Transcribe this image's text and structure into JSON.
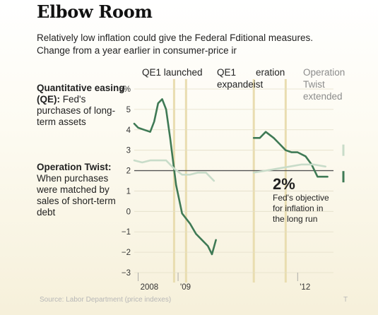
{
  "header": {
    "title": "Elbow Room",
    "subtitle_line1": "Relatively low inflation could give the Federal Fditional measures.",
    "subtitle_line2": "Change from a year earlier in consumer-price ir"
  },
  "legend": {
    "qe_heading": "Quantitative easing (QE):",
    "qe_desc": "Fed's purchases of long-term assets",
    "ot_heading": "Operation Twist:",
    "ot_desc": "When purchases were matched by sales of short-term debt"
  },
  "annotations": {
    "qe1_launched": "QE1 launched",
    "qe1_expanded_line1": "QE1",
    "qe1_expanded_line1b": "eration",
    "qe1_expanded_line2": "expandeist",
    "twist_line1": "Operation",
    "twist_line2": "Twist",
    "twist_line3": "extended",
    "goal_value": "2%",
    "goal_line1": "Fed's objective",
    "goal_line2": "for inflation in",
    "goal_line3": "the long run",
    "source": "Source: Labor Department (price indexes)",
    "corner_mark": "T"
  },
  "colors": {
    "headline_series": "#3f7a55",
    "core_series": "#c8dcc9",
    "highlight": "#e9ddb0",
    "goal_line": "#555555"
  },
  "chart_data": {
    "type": "line",
    "title": "",
    "xlabel": "",
    "ylabel": "",
    "ylim": [
      -3,
      6
    ],
    "y_ticks": [
      -3,
      -2,
      -1,
      0,
      1,
      2,
      3,
      4,
      5,
      6
    ],
    "y_tick_labels": [
      "−3",
      "−2",
      "−1",
      "0",
      "1",
      "2",
      "3",
      "4",
      "5",
      "6%"
    ],
    "xlim": [
      2007.9,
      2012.9
    ],
    "x_ticks": [
      2008,
      2009,
      2012
    ],
    "x_tick_labels": [
      "2008",
      "'09",
      "'12"
    ],
    "reference_line": {
      "y": 2
    },
    "events": [
      {
        "x": 2008.9
      },
      {
        "x": 2009.2
      },
      {
        "x": 2010.9
      },
      {
        "x": 2011.7
      }
    ],
    "series": [
      {
        "name": "",
        "x": [
          2007.9,
          2008.0,
          2008.15,
          2008.3,
          2008.4,
          2008.5,
          2008.6,
          2008.7,
          2008.8,
          2008.95,
          2009.1,
          2009.3,
          2009.45,
          2009.6,
          2009.75,
          2009.85,
          2009.95
        ],
        "values": [
          4.3,
          4.1,
          4.0,
          3.9,
          4.4,
          5.3,
          5.5,
          5.0,
          3.6,
          1.3,
          -0.1,
          -0.6,
          -1.1,
          -1.4,
          -1.7,
          -2.1,
          -1.4
        ]
      },
      {
        "name": "",
        "x": [
          2007.9,
          2008.1,
          2008.3,
          2008.5,
          2008.7,
          2008.9,
          2009.1,
          2009.3,
          2009.5,
          2009.7,
          2009.9
        ],
        "values": [
          2.5,
          2.4,
          2.5,
          2.5,
          2.5,
          2.1,
          1.8,
          1.8,
          1.9,
          1.9,
          1.5
        ]
      },
      {
        "name": "",
        "x": [
          2010.9,
          2011.05,
          2011.2,
          2011.4,
          2011.55,
          2011.7,
          2011.85,
          2012.0,
          2012.2,
          2012.35,
          2012.5,
          2012.65,
          2012.75
        ],
        "values": [
          3.6,
          3.6,
          3.9,
          3.6,
          3.3,
          3.0,
          2.9,
          2.9,
          2.7,
          2.3,
          1.7,
          1.7,
          1.7
        ]
      },
      {
        "name": "",
        "x": [
          2010.9,
          2011.2,
          2011.5,
          2011.8,
          2012.1,
          2012.4,
          2012.7
        ],
        "values": [
          1.9,
          2.0,
          2.1,
          2.2,
          2.3,
          2.3,
          2.2
        ]
      }
    ]
  }
}
